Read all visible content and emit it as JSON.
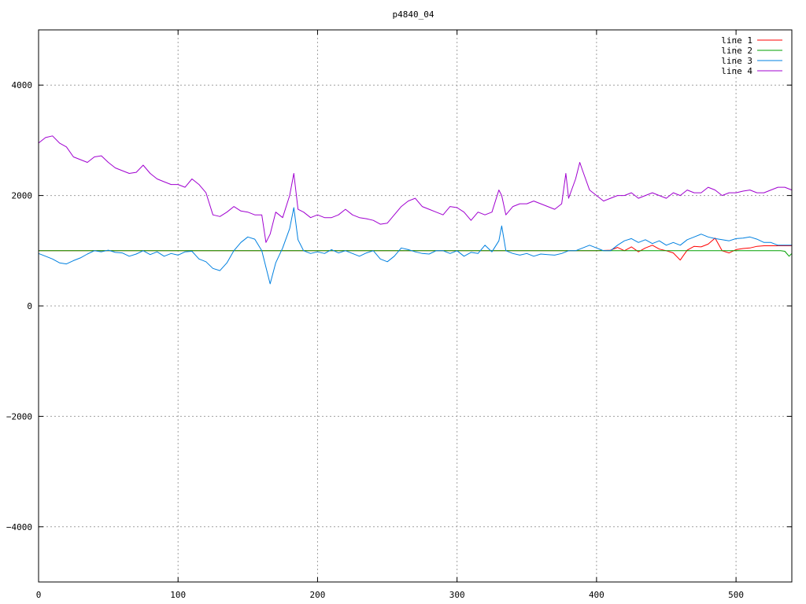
{
  "chart_data": {
    "type": "line",
    "title": "p4840_04",
    "xlabel": "",
    "ylabel": "",
    "xlim": [
      0,
      540
    ],
    "ylim": [
      -5000,
      5000
    ],
    "xticks": [
      0,
      100,
      200,
      300,
      400,
      500
    ],
    "yticks": [
      -4000,
      -2000,
      0,
      2000,
      4000
    ],
    "grid": true,
    "legend_position": "top-right",
    "series": [
      {
        "name": "line 1",
        "color": "#ff0000",
        "x": [
          0,
          100,
          200,
          300,
          400,
          410,
          415,
          420,
          425,
          430,
          435,
          440,
          445,
          450,
          455,
          460,
          465,
          470,
          475,
          480,
          485,
          490,
          495,
          500,
          505,
          510,
          515,
          520,
          525,
          530,
          535,
          540
        ],
        "y": [
          1000,
          1000,
          1000,
          1000,
          1000,
          1010,
          1060,
          1000,
          1070,
          980,
          1050,
          1100,
          1030,
          1000,
          960,
          830,
          1010,
          1080,
          1070,
          1120,
          1230,
          1000,
          960,
          1020,
          1040,
          1050,
          1080,
          1090,
          1090,
          1090,
          1090,
          1090
        ]
      },
      {
        "name": "line 2",
        "color": "#00a000",
        "x": [
          0,
          100,
          200,
          300,
          400,
          500,
          532,
          535,
          538,
          540
        ],
        "y": [
          1000,
          1000,
          1000,
          1000,
          1000,
          1000,
          1000,
          990,
          900,
          950
        ]
      },
      {
        "name": "line 3",
        "color": "#0080e0",
        "x": [
          0,
          5,
          10,
          15,
          20,
          25,
          30,
          35,
          40,
          45,
          50,
          55,
          60,
          65,
          70,
          75,
          80,
          85,
          90,
          95,
          100,
          105,
          110,
          115,
          120,
          125,
          130,
          135,
          140,
          145,
          150,
          155,
          160,
          163,
          166,
          170,
          175,
          180,
          183,
          186,
          190,
          195,
          200,
          205,
          210,
          215,
          220,
          225,
          230,
          235,
          240,
          245,
          250,
          255,
          260,
          265,
          270,
          275,
          280,
          285,
          290,
          295,
          300,
          305,
          310,
          315,
          320,
          325,
          330,
          332,
          335,
          340,
          345,
          350,
          355,
          360,
          365,
          370,
          375,
          380,
          385,
          390,
          395,
          400,
          405,
          410,
          415,
          420,
          425,
          430,
          435,
          440,
          445,
          450,
          455,
          460,
          465,
          470,
          475,
          480,
          485,
          490,
          495,
          500,
          505,
          510,
          515,
          520,
          525,
          530,
          535,
          540
        ],
        "y": [
          950,
          900,
          850,
          780,
          760,
          820,
          870,
          940,
          1000,
          980,
          1010,
          970,
          960,
          900,
          940,
          1000,
          930,
          980,
          900,
          950,
          920,
          980,
          990,
          850,
          800,
          680,
          640,
          780,
          1000,
          1150,
          1250,
          1210,
          1000,
          700,
          400,
          780,
          1050,
          1400,
          1780,
          1200,
          1000,
          950,
          980,
          950,
          1020,
          960,
          1000,
          950,
          900,
          960,
          1000,
          850,
          800,
          900,
          1050,
          1020,
          980,
          950,
          940,
          1000,
          1000,
          950,
          1000,
          900,
          970,
          950,
          1100,
          980,
          1180,
          1450,
          1000,
          950,
          920,
          950,
          900,
          940,
          930,
          920,
          950,
          1000,
          1000,
          1050,
          1100,
          1050,
          1000,
          1000,
          1100,
          1180,
          1220,
          1150,
          1200,
          1130,
          1180,
          1100,
          1150,
          1100,
          1200,
          1250,
          1300,
          1250,
          1220,
          1200,
          1180,
          1220,
          1230,
          1250,
          1210,
          1150,
          1150,
          1100,
          1100,
          1100
        ]
      },
      {
        "name": "line 4",
        "color": "#a000d0",
        "x": [
          0,
          5,
          10,
          15,
          20,
          25,
          30,
          35,
          40,
          45,
          50,
          55,
          60,
          65,
          70,
          75,
          80,
          85,
          90,
          95,
          100,
          105,
          110,
          115,
          120,
          125,
          130,
          135,
          140,
          145,
          150,
          155,
          160,
          163,
          166,
          170,
          175,
          180,
          183,
          186,
          190,
          195,
          200,
          205,
          210,
          215,
          220,
          225,
          230,
          235,
          240,
          245,
          250,
          255,
          260,
          265,
          270,
          275,
          280,
          285,
          290,
          295,
          300,
          305,
          310,
          315,
          320,
          325,
          330,
          332,
          335,
          340,
          345,
          350,
          355,
          360,
          365,
          370,
          375,
          378,
          380,
          385,
          388,
          390,
          395,
          400,
          405,
          410,
          415,
          420,
          425,
          430,
          435,
          440,
          445,
          450,
          455,
          460,
          465,
          470,
          475,
          480,
          485,
          490,
          495,
          500,
          505,
          510,
          515,
          520,
          525,
          530,
          535,
          540
        ],
        "y": [
          2950,
          3050,
          3080,
          2950,
          2880,
          2700,
          2650,
          2600,
          2700,
          2720,
          2600,
          2500,
          2450,
          2400,
          2420,
          2550,
          2400,
          2300,
          2250,
          2200,
          2200,
          2150,
          2300,
          2200,
          2050,
          1650,
          1620,
          1700,
          1800,
          1720,
          1700,
          1650,
          1650,
          1150,
          1300,
          1700,
          1600,
          2000,
          2400,
          1750,
          1700,
          1600,
          1650,
          1600,
          1600,
          1650,
          1750,
          1650,
          1600,
          1580,
          1550,
          1480,
          1500,
          1650,
          1800,
          1900,
          1950,
          1800,
          1750,
          1700,
          1650,
          1800,
          1780,
          1700,
          1550,
          1700,
          1650,
          1700,
          2100,
          2000,
          1650,
          1800,
          1850,
          1850,
          1900,
          1850,
          1800,
          1750,
          1850,
          2400,
          1950,
          2300,
          2600,
          2450,
          2100,
          2000,
          1900,
          1950,
          2000,
          2000,
          2050,
          1950,
          2000,
          2050,
          2000,
          1950,
          2050,
          2000,
          2100,
          2050,
          2050,
          2150,
          2100,
          2000,
          2050,
          2050,
          2080,
          2100,
          2050,
          2050,
          2100,
          2150,
          2150,
          2100
        ]
      }
    ]
  }
}
